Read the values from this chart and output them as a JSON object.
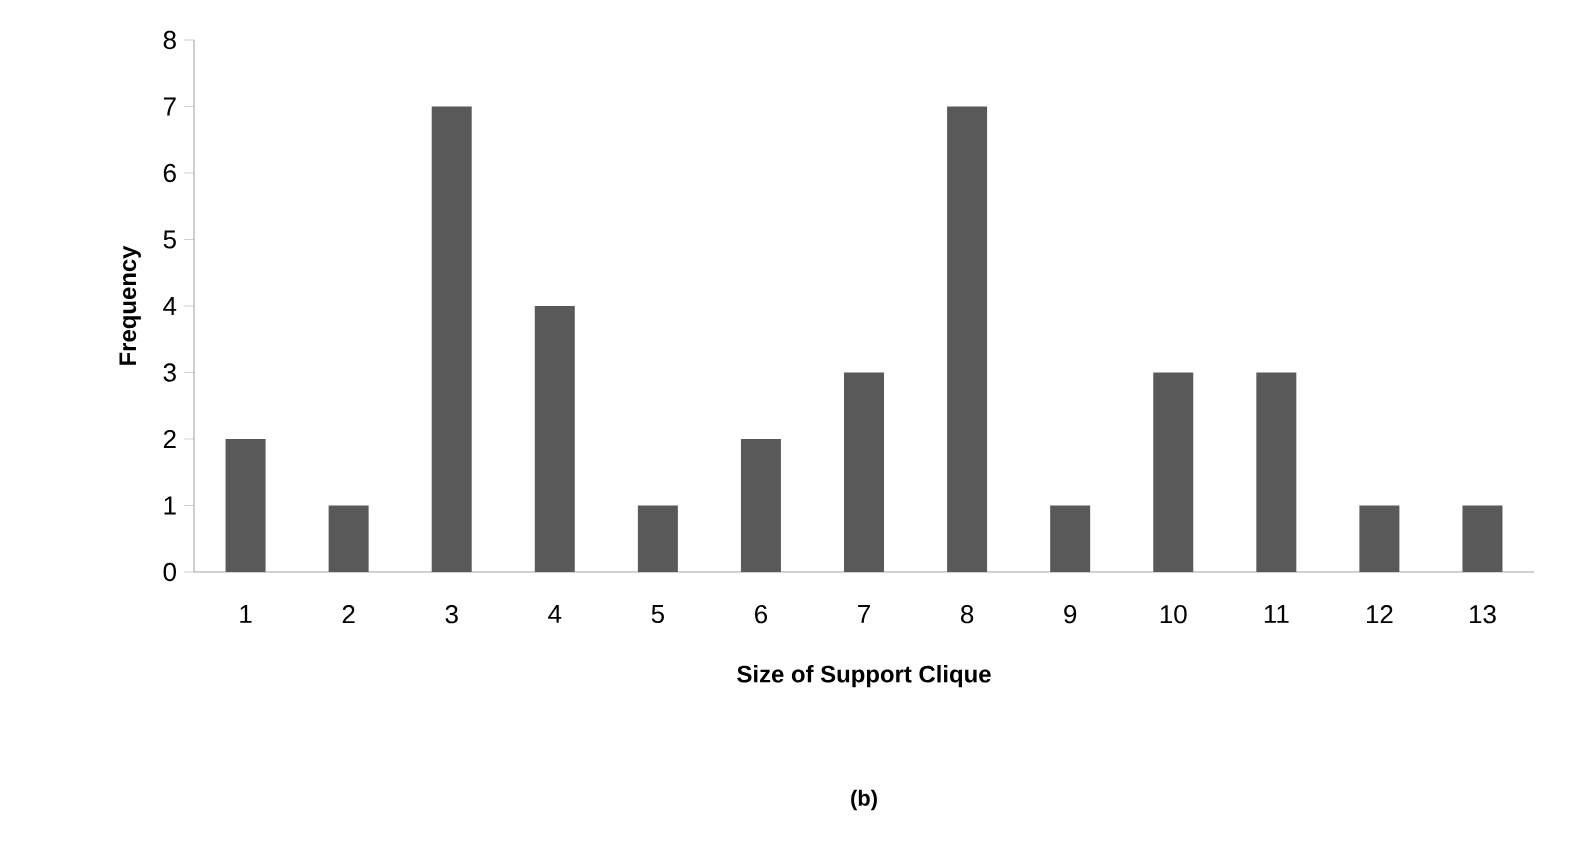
{
  "chart_data": {
    "type": "bar",
    "categories": [
      "1",
      "2",
      "3",
      "4",
      "5",
      "6",
      "7",
      "8",
      "9",
      "10",
      "11",
      "12",
      "13"
    ],
    "values": [
      2,
      1,
      7,
      4,
      1,
      2,
      3,
      7,
      1,
      3,
      3,
      1,
      1
    ],
    "color": "#595959",
    "xlabel": "Size of Support Clique",
    "ylabel": "Frequency",
    "ylim": [
      0,
      8
    ],
    "yticks": [
      0,
      1,
      2,
      3,
      4,
      5,
      6,
      7,
      8
    ],
    "grid": false,
    "annotations": [
      "(b)"
    ]
  }
}
